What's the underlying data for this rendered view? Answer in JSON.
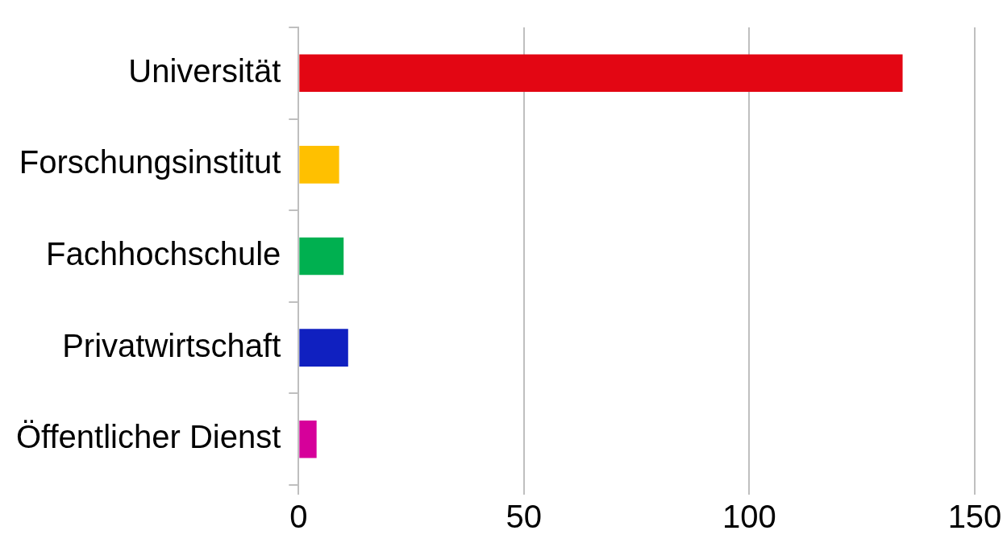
{
  "chart_data": {
    "type": "bar",
    "orientation": "horizontal",
    "categories": [
      "Universität",
      "Forschungsinstitut",
      "Fachhochschule",
      "Privatwirtschaft",
      "Öffentlicher Dienst"
    ],
    "values": [
      134,
      9,
      10,
      11,
      4
    ],
    "colors": [
      "#e30613",
      "#ffc000",
      "#00b050",
      "#1020c0",
      "#d6009a"
    ],
    "xlim": [
      0,
      150
    ],
    "xticks": [
      0,
      50,
      100,
      150
    ],
    "grid": "x"
  }
}
